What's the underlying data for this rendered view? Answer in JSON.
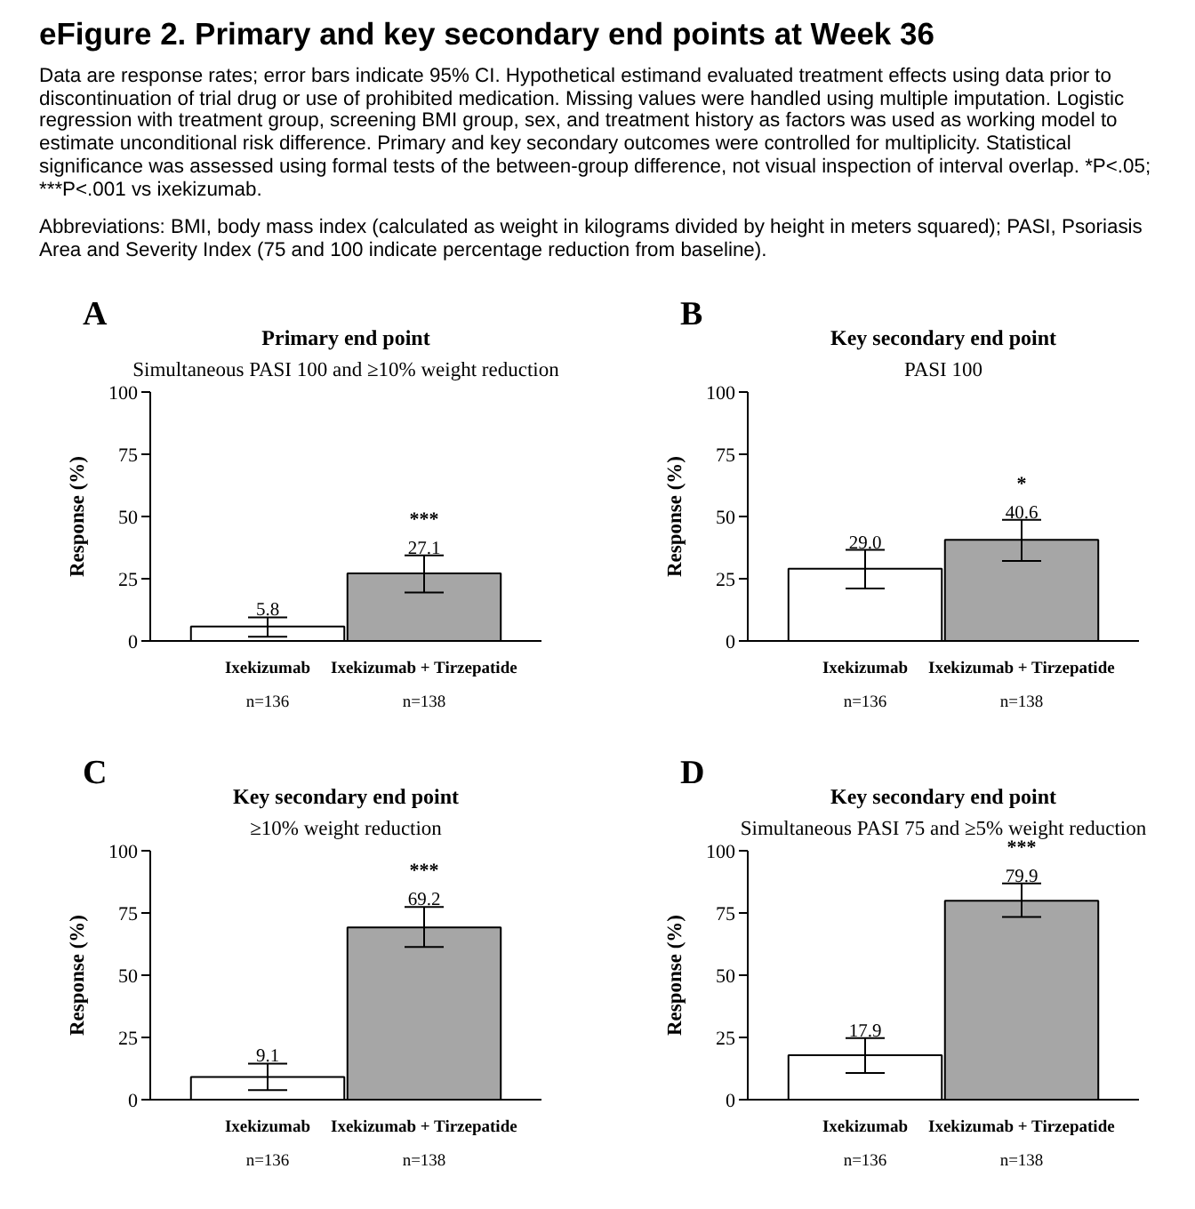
{
  "chart_data": [
    {
      "type": "other",
      "title": "eFigure 2. Primary and key secondary end points at Week 36",
      "annotations": [
        "Data are response rates; error bars indicate 95% CI. Hypothetical estimand evaluated treatment effects using data prior to discontinuation of trial drug or use of prohibited medication. Missing values were handled using multiple imputation. Logistic regression with treatment group, screening BMI group, sex, and treatment history as factors was used as working model to estimate unconditional risk difference. Primary and key secondary outcomes were controlled for multiplicity. Statistical significance was assessed using formal tests of the between-group difference, not visual inspection of interval overlap. *P<.05; ***P<.001 vs ixekizumab.",
        "Abbreviations: BMI, body mass index (calculated as weight in kilograms divided by height in meters squared); PASI, Psoriasis Area and Severity Index (75 and 100 indicate percentage reduction from baseline)."
      ]
    },
    {
      "type": "bar",
      "title": "Primary end point",
      "subtitle": "Simultaneous PASI 100 and ≥10% weight reduction",
      "ylabel": "Response (%)",
      "categories": [
        "Ixekizumab",
        "Ixekizumab + Tirzepatide"
      ],
      "values": [
        5.8,
        27.1
      ],
      "value_labels": [
        "5.8",
        "27.1"
      ],
      "colors": [
        "#ffffff",
        "#a6a6a6"
      ],
      "errors": [
        [
          1.7,
          9.5
        ],
        [
          19.5,
          34.4
        ]
      ],
      "ylim": [
        0,
        100
      ],
      "yticks": [
        0,
        25,
        50,
        75,
        100
      ],
      "annotations": [
        "A",
        "n=136",
        "n=138",
        "***"
      ]
    },
    {
      "type": "bar",
      "title": "Key secondary end point",
      "subtitle": "PASI 100",
      "ylabel": "Response (%)",
      "categories": [
        "Ixekizumab",
        "Ixekizumab + Tirzepatide"
      ],
      "values": [
        29.0,
        40.6
      ],
      "value_labels": [
        "29.0",
        "40.6"
      ],
      "colors": [
        "#ffffff",
        "#a6a6a6"
      ],
      "errors": [
        [
          21.1,
          36.6
        ],
        [
          32.1,
          48.7
        ]
      ],
      "ylim": [
        0,
        100
      ],
      "yticks": [
        0,
        25,
        50,
        75,
        100
      ],
      "annotations": [
        "B",
        "n=136",
        "n=138",
        "*"
      ]
    },
    {
      "type": "bar",
      "title": "Key secondary end point",
      "subtitle": "≥10% weight reduction",
      "ylabel": "Response (%)",
      "categories": [
        "Ixekizumab",
        "Ixekizumab + Tirzepatide"
      ],
      "values": [
        9.1,
        69.2
      ],
      "value_labels": [
        "9.1",
        "69.2"
      ],
      "colors": [
        "#ffffff",
        "#a6a6a6"
      ],
      "errors": [
        [
          3.8,
          14.5
        ],
        [
          61.3,
          77.4
        ]
      ],
      "ylim": [
        0,
        100
      ],
      "yticks": [
        0,
        25,
        50,
        75,
        100
      ],
      "annotations": [
        "C",
        "n=136",
        "n=138",
        "***"
      ]
    },
    {
      "type": "bar",
      "title": "Key secondary end point",
      "subtitle": "Simultaneous PASI 75 and ≥5% weight reduction",
      "ylabel": "Response (%)",
      "categories": [
        "Ixekizumab",
        "Ixekizumab + Tirzepatide"
      ],
      "values": [
        17.9,
        79.9
      ],
      "value_labels": [
        "17.9",
        "79.9"
      ],
      "colors": [
        "#ffffff",
        "#a6a6a6"
      ],
      "errors": [
        [
          10.7,
          24.7
        ],
        [
          73.4,
          86.9
        ]
      ],
      "ylim": [
        0,
        100
      ],
      "yticks": [
        0,
        25,
        50,
        75,
        100
      ],
      "annotations": [
        "D",
        "n=136",
        "n=138",
        "***"
      ]
    }
  ]
}
